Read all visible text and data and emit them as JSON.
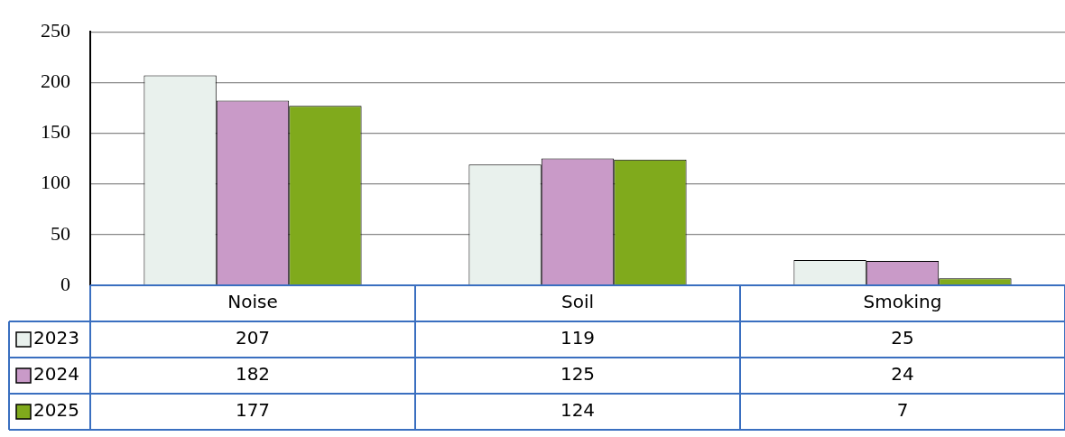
{
  "chart_data": {
    "type": "bar",
    "categories": [
      "Noise",
      "Soil",
      "Smoking"
    ],
    "series": [
      {
        "name": "2023",
        "color": "#e9f1ed",
        "values": [
          207,
          119,
          25
        ]
      },
      {
        "name": "2024",
        "color": "#c99ac8",
        "values": [
          182,
          125,
          24
        ]
      },
      {
        "name": "2025",
        "color": "#80aa1c",
        "values": [
          177,
          124,
          7
        ]
      }
    ],
    "ylim": [
      0,
      250
    ],
    "yticks": [
      0,
      50,
      100,
      150,
      200,
      250
    ],
    "grid": "y",
    "data_labels": true,
    "legend": "bottom left"
  }
}
